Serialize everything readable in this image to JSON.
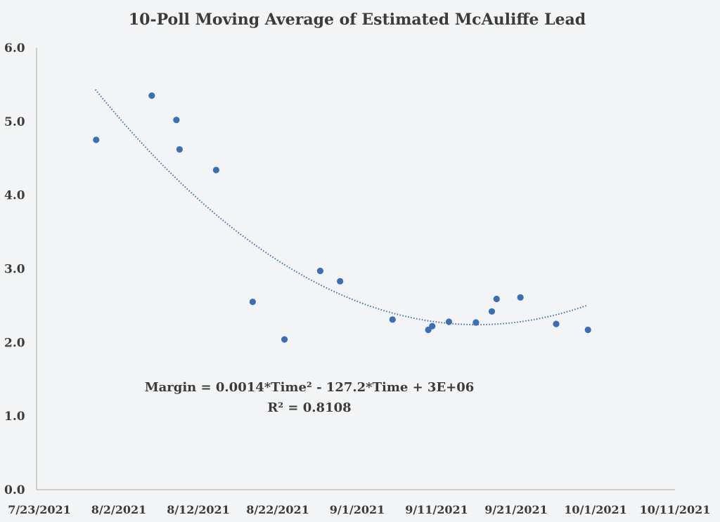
{
  "chart_data": {
    "type": "scatter",
    "title": "10-Poll Moving Average of Estimated McAuliffe Lead",
    "xlabel": "",
    "ylabel": "",
    "x_unit": "days since 7/23/2021",
    "xlim": [
      0,
      80
    ],
    "ylim": [
      0,
      6
    ],
    "grid": false,
    "legend": "none",
    "x_ticks": [
      {
        "value": 0,
        "label": "7/23/2021"
      },
      {
        "value": 10,
        "label": "8/2/2021"
      },
      {
        "value": 20,
        "label": "8/12/2021"
      },
      {
        "value": 30,
        "label": "8/22/2021"
      },
      {
        "value": 40,
        "label": "9/1/2021"
      },
      {
        "value": 50,
        "label": "9/11/2021"
      },
      {
        "value": 60,
        "label": "9/21/2021"
      },
      {
        "value": 70,
        "label": "10/1/2021"
      },
      {
        "value": 80,
        "label": "10/11/2021"
      }
    ],
    "y_ticks": [
      {
        "value": 0,
        "label": "0.0"
      },
      {
        "value": 1,
        "label": "1.0"
      },
      {
        "value": 2,
        "label": "2.0"
      },
      {
        "value": 3,
        "label": "3.0"
      },
      {
        "value": 4,
        "label": "4.0"
      },
      {
        "value": 5,
        "label": "5.0"
      },
      {
        "value": 6,
        "label": "6.0"
      }
    ],
    "series": [
      {
        "name": "10-poll moving average",
        "color": "#3a6fb5",
        "points": [
          {
            "x": 7.5,
            "y": 4.75
          },
          {
            "x": 14.5,
            "y": 5.35
          },
          {
            "x": 17.6,
            "y": 5.02
          },
          {
            "x": 18.0,
            "y": 4.62
          },
          {
            "x": 22.6,
            "y": 4.34
          },
          {
            "x": 27.2,
            "y": 2.55
          },
          {
            "x": 31.2,
            "y": 2.04
          },
          {
            "x": 35.7,
            "y": 2.97
          },
          {
            "x": 38.2,
            "y": 2.83
          },
          {
            "x": 44.8,
            "y": 2.31
          },
          {
            "x": 49.3,
            "y": 2.17
          },
          {
            "x": 49.8,
            "y": 2.22
          },
          {
            "x": 51.9,
            "y": 2.28
          },
          {
            "x": 55.3,
            "y": 2.27
          },
          {
            "x": 57.3,
            "y": 2.42
          },
          {
            "x": 57.9,
            "y": 2.59
          },
          {
            "x": 60.9,
            "y": 2.61
          },
          {
            "x": 65.4,
            "y": 2.25
          },
          {
            "x": 69.4,
            "y": 2.17
          }
        ]
      }
    ],
    "trendline": {
      "type": "polynomial-2",
      "color": "#3a6fb5",
      "style": "dotted",
      "x_range": [
        7.4,
        69.2
      ],
      "vertex_x": 55.5,
      "vertex_y": 2.24,
      "a": 0.00138
    },
    "annotations": {
      "equation": "Margin = 0.0014*Time² - 127.2*Time + 3E+06",
      "r_squared": "R² = 0.8108"
    }
  }
}
